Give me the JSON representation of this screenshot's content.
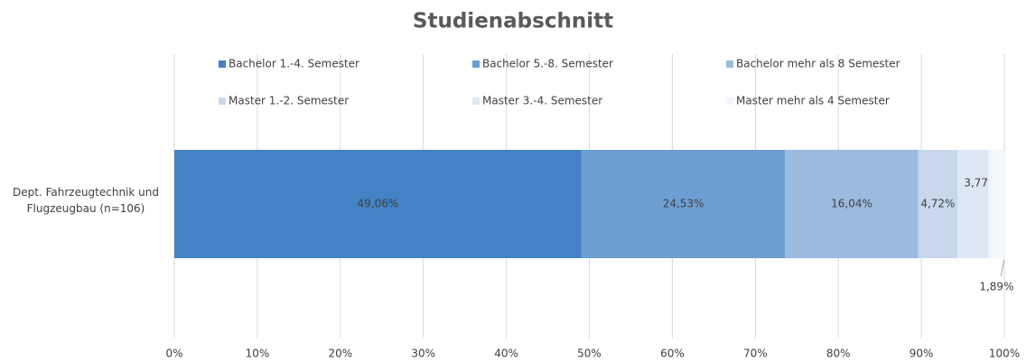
{
  "chart_data": {
    "type": "stacked_bar_horizontal",
    "title": "Studienabschnitt",
    "categories": [
      "Dept. Fahrzeugtechnik und Flugzeugbau (n=106)"
    ],
    "series": [
      {
        "name": "Bachelor 1.-4. Semester",
        "color": "#4382c4",
        "values": [
          49.06
        ],
        "value_labels": [
          "49,06%"
        ]
      },
      {
        "name": "Bachelor 5.-8. Semester",
        "color": "#6d9fd2",
        "values": [
          24.53
        ],
        "value_labels": [
          "24,53%"
        ]
      },
      {
        "name": "Bachelor mehr als 8 Semester",
        "color": "#9bbae0",
        "values": [
          16.04
        ],
        "value_labels": [
          "16,04%"
        ]
      },
      {
        "name": "Master 1.-2. Semester",
        "color": "#c7d8ec",
        "values": [
          4.72
        ],
        "value_labels": [
          "4,72%"
        ]
      },
      {
        "name": "Master 3.-4. Semester",
        "color": "#dde8f4",
        "values": [
          3.77
        ],
        "value_labels": [
          "3,77%"
        ]
      },
      {
        "name": "Master mehr als 4 Semester",
        "color": "#f3f6fb",
        "values": [
          1.89
        ],
        "value_labels": [
          "1,89%"
        ]
      }
    ],
    "xlim": [
      0,
      100
    ],
    "xticks": [
      {
        "value": 0,
        "label": "0%"
      },
      {
        "value": 10,
        "label": "10%"
      },
      {
        "value": 20,
        "label": "20%"
      },
      {
        "value": 30,
        "label": "30%"
      },
      {
        "value": 40,
        "label": "40%"
      },
      {
        "value": 50,
        "label": "50%"
      },
      {
        "value": 60,
        "label": "60%"
      },
      {
        "value": 70,
        "label": "70%"
      },
      {
        "value": 80,
        "label": "80%"
      },
      {
        "value": 90,
        "label": "90%"
      },
      {
        "value": 100,
        "label": "100%"
      }
    ],
    "grid": true,
    "legend": "top"
  }
}
